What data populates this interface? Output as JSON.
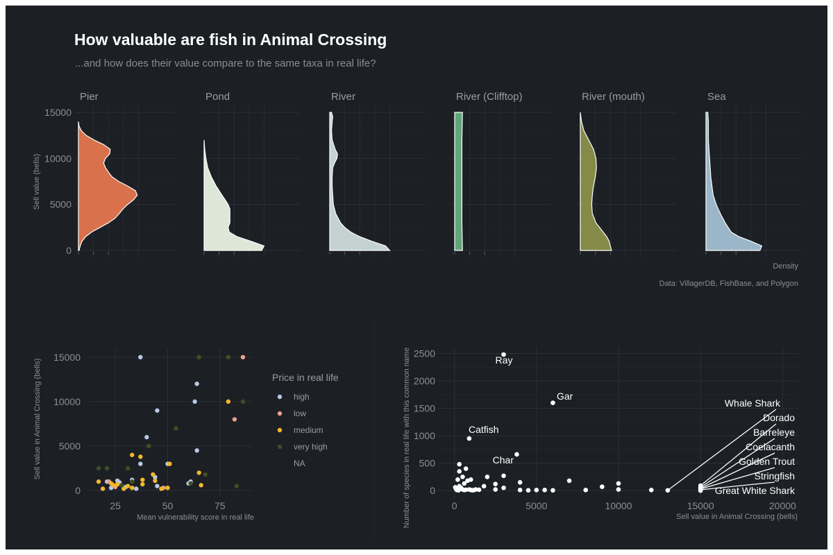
{
  "title": "How valuable are fish in Animal Crossing",
  "subtitle": "...and how does their value compare to the same taxa in real life?",
  "caption": "Data: VillagerDB, FishBase, and Polygon",
  "chart_data": [
    {
      "type": "area",
      "kind": "faceted density (horizontal)",
      "ylabel": "Sell value (bells)",
      "xlabel": "Density",
      "ylim": [
        0,
        15000
      ],
      "y_ticks": [
        0,
        5000,
        10000,
        15000
      ],
      "grid": true,
      "y_grid": "sell value in bells",
      "x_grid": "relative density, peak = 1",
      "facets": [
        {
          "name": "Pier",
          "color": "#d8714c",
          "density": [
            [
              0,
              0.01
            ],
            [
              500,
              0.03
            ],
            [
              1000,
              0.06
            ],
            [
              1500,
              0.12
            ],
            [
              2000,
              0.22
            ],
            [
              2500,
              0.36
            ],
            [
              3000,
              0.5
            ],
            [
              3500,
              0.61
            ],
            [
              4000,
              0.68
            ],
            [
              4500,
              0.74
            ],
            [
              5000,
              0.82
            ],
            [
              5500,
              0.92
            ],
            [
              6000,
              0.98
            ],
            [
              6500,
              0.95
            ],
            [
              7000,
              0.82
            ],
            [
              7500,
              0.67
            ],
            [
              8000,
              0.56
            ],
            [
              8500,
              0.5
            ],
            [
              9000,
              0.45
            ],
            [
              9500,
              0.42
            ],
            [
              10000,
              0.45
            ],
            [
              10500,
              0.52
            ],
            [
              11000,
              0.53
            ],
            [
              11500,
              0.42
            ],
            [
              12000,
              0.26
            ],
            [
              12500,
              0.13
            ],
            [
              13000,
              0.05
            ],
            [
              13500,
              0.01
            ],
            [
              14000,
              0.0
            ]
          ]
        },
        {
          "name": "Pond",
          "color": "#dce7d8",
          "density": [
            [
              0,
              0.96
            ],
            [
              500,
              1.0
            ],
            [
              1000,
              0.78
            ],
            [
              1500,
              0.55
            ],
            [
              2000,
              0.42
            ],
            [
              2500,
              0.4
            ],
            [
              3000,
              0.43
            ],
            [
              3500,
              0.43
            ],
            [
              4000,
              0.43
            ],
            [
              4500,
              0.43
            ],
            [
              5000,
              0.4
            ],
            [
              5500,
              0.35
            ],
            [
              6000,
              0.3
            ],
            [
              7000,
              0.2
            ],
            [
              8000,
              0.12
            ],
            [
              9000,
              0.06
            ],
            [
              10000,
              0.03
            ],
            [
              11000,
              0.01
            ],
            [
              12000,
              0.0
            ]
          ]
        },
        {
          "name": "River",
          "color": "#c5d2d2",
          "density": [
            [
              0,
              1.0
            ],
            [
              500,
              0.93
            ],
            [
              1000,
              0.7
            ],
            [
              1500,
              0.5
            ],
            [
              2000,
              0.35
            ],
            [
              2500,
              0.25
            ],
            [
              3000,
              0.18
            ],
            [
              4000,
              0.1
            ],
            [
              5000,
              0.06
            ],
            [
              6000,
              0.05
            ],
            [
              7000,
              0.04
            ],
            [
              8000,
              0.04
            ],
            [
              9000,
              0.05
            ],
            [
              9500,
              0.08
            ],
            [
              10000,
              0.12
            ],
            [
              10500,
              0.13
            ],
            [
              11000,
              0.09
            ],
            [
              12000,
              0.04
            ],
            [
              13000,
              0.03
            ],
            [
              14000,
              0.04
            ],
            [
              14500,
              0.05
            ],
            [
              15000,
              0.03
            ]
          ]
        },
        {
          "name": "River (Clifftop)",
          "color": "#5fa778",
          "density": [
            [
              0,
              0.13
            ],
            [
              3000,
              0.12
            ],
            [
              6000,
              0.12
            ],
            [
              9000,
              0.12
            ],
            [
              12000,
              0.12
            ],
            [
              15000,
              0.13
            ]
          ]
        },
        {
          "name": "River (mouth)",
          "color": "#858a48",
          "density": [
            [
              0,
              0.52
            ],
            [
              500,
              0.5
            ],
            [
              1000,
              0.48
            ],
            [
              1500,
              0.44
            ],
            [
              2000,
              0.38
            ],
            [
              2500,
              0.32
            ],
            [
              3000,
              0.26
            ],
            [
              4000,
              0.2
            ],
            [
              5000,
              0.19
            ],
            [
              6000,
              0.2
            ],
            [
              7000,
              0.22
            ],
            [
              8000,
              0.25
            ],
            [
              9000,
              0.27
            ],
            [
              10000,
              0.26
            ],
            [
              11000,
              0.22
            ],
            [
              12000,
              0.14
            ],
            [
              13000,
              0.06
            ],
            [
              14000,
              0.02
            ],
            [
              15000,
              0.0
            ]
          ]
        },
        {
          "name": "Sea",
          "color": "#9ab6c8",
          "density": [
            [
              0,
              0.9
            ],
            [
              500,
              0.93
            ],
            [
              1000,
              0.75
            ],
            [
              1500,
              0.55
            ],
            [
              2000,
              0.42
            ],
            [
              3000,
              0.32
            ],
            [
              4000,
              0.24
            ],
            [
              5000,
              0.17
            ],
            [
              6000,
              0.12
            ],
            [
              7000,
              0.1
            ],
            [
              8000,
              0.08
            ],
            [
              9000,
              0.07
            ],
            [
              10000,
              0.06
            ],
            [
              11000,
              0.05
            ],
            [
              12000,
              0.04
            ],
            [
              13000,
              0.04
            ],
            [
              14000,
              0.04
            ],
            [
              15000,
              0.03
            ]
          ]
        }
      ]
    },
    {
      "type": "scatter",
      "xlabel": "Mean vulnerability score in real life",
      "ylabel": "Sell value in Animal Crossing (bells)",
      "xlim": [
        12,
        90
      ],
      "ylim": [
        -700,
        16000
      ],
      "x_ticks": [
        25,
        50,
        75
      ],
      "y_ticks": [
        0,
        5000,
        10000,
        15000
      ],
      "grid": true,
      "legend_title": "Price in real life",
      "legend_position": "right",
      "series": [
        {
          "name": "high",
          "color": "#b8c8e6",
          "points": [
            [
              37,
              15000
            ],
            [
              64,
              12000
            ],
            [
              63,
              10000
            ],
            [
              45,
              9000
            ],
            [
              40,
              6000
            ],
            [
              64,
              4500
            ],
            [
              37,
              3000
            ],
            [
              50,
              3000
            ],
            [
              44,
              1500
            ],
            [
              61,
              1000
            ],
            [
              26,
              1100
            ],
            [
              33,
              1200
            ],
            [
              27,
              900
            ],
            [
              21,
              1000
            ],
            [
              45,
              500
            ],
            [
              30,
              400
            ],
            [
              23,
              300
            ],
            [
              35,
              200
            ],
            [
              60,
              800
            ]
          ]
        },
        {
          "name": "low",
          "color": "#e8a090",
          "points": [
            [
              86,
              15000
            ],
            [
              82,
              8000
            ],
            [
              22,
              1000
            ],
            [
              25,
              400
            ],
            [
              48,
              300
            ]
          ]
        },
        {
          "name": "medium",
          "color": "#f0b829",
          "points": [
            [
              79,
              10000
            ],
            [
              33,
              4000
            ],
            [
              37,
              3800
            ],
            [
              51,
              3000
            ],
            [
              43,
              1800
            ],
            [
              65,
              2000
            ],
            [
              38,
              1200
            ],
            [
              17,
              1000
            ],
            [
              23,
              800
            ],
            [
              26,
              700
            ],
            [
              31,
              500
            ],
            [
              19,
              200
            ],
            [
              38,
              700
            ],
            [
              29,
              200
            ],
            [
              50,
              300
            ],
            [
              66,
              600
            ],
            [
              47,
              200
            ],
            [
              33,
              300
            ],
            [
              44,
              1100
            ],
            [
              24,
              600
            ]
          ]
        },
        {
          "name": "very high",
          "color": "#3f4f23",
          "points": [
            [
              65,
              15000
            ],
            [
              79,
              15000
            ],
            [
              86,
              10000
            ],
            [
              54,
              7000
            ],
            [
              41,
              5000
            ],
            [
              17,
              2500
            ],
            [
              21,
              2500
            ],
            [
              31,
              2500
            ],
            [
              68,
              1800
            ],
            [
              61,
              800
            ],
            [
              83,
              500
            ],
            [
              33,
              1000
            ],
            [
              28,
              600
            ]
          ]
        },
        {
          "name": "NA",
          "color": "#1c1f24",
          "points": []
        }
      ]
    },
    {
      "type": "scatter",
      "xlabel": "Sell value in Animal Crossing (bells)",
      "ylabel": "Number of species in real life with this common name",
      "xlim": [
        -1000,
        21000
      ],
      "ylim": [
        -150,
        2620
      ],
      "x_ticks": [
        0,
        5000,
        10000,
        15000,
        20000
      ],
      "y_ticks": [
        0,
        500,
        1000,
        1500,
        2000,
        2500
      ],
      "grid": true,
      "points": [
        [
          3000,
          2480
        ],
        [
          6000,
          1600
        ],
        [
          900,
          950
        ],
        [
          3800,
          660
        ],
        [
          300,
          480
        ],
        [
          700,
          400
        ],
        [
          300,
          350
        ],
        [
          3000,
          270
        ],
        [
          500,
          250
        ],
        [
          2000,
          250
        ],
        [
          4000,
          150
        ],
        [
          7000,
          180
        ],
        [
          9000,
          70
        ],
        [
          10000,
          130
        ],
        [
          200,
          200
        ],
        [
          800,
          180
        ],
        [
          1000,
          200
        ],
        [
          2500,
          120
        ],
        [
          600,
          130
        ],
        [
          1800,
          80
        ],
        [
          300,
          80
        ],
        [
          400,
          50
        ],
        [
          100,
          30
        ],
        [
          200,
          20
        ],
        [
          500,
          20
        ],
        [
          600,
          10
        ],
        [
          700,
          15
        ],
        [
          900,
          20
        ],
        [
          1000,
          10
        ],
        [
          1100,
          5
        ],
        [
          1200,
          10
        ],
        [
          1500,
          15
        ],
        [
          1300,
          20
        ],
        [
          2500,
          20
        ],
        [
          3000,
          50
        ],
        [
          4000,
          10
        ],
        [
          4500,
          5
        ],
        [
          5000,
          10
        ],
        [
          5500,
          10
        ],
        [
          6000,
          5
        ],
        [
          8000,
          10
        ],
        [
          10000,
          20
        ],
        [
          12000,
          10
        ],
        [
          13000,
          5
        ],
        [
          15000,
          90
        ],
        [
          15000,
          60
        ],
        [
          15000,
          40
        ],
        [
          15000,
          30
        ],
        [
          15000,
          15
        ],
        [
          15000,
          5
        ],
        [
          15000,
          0
        ],
        [
          50,
          60
        ],
        [
          150,
          10
        ],
        [
          250,
          5
        ],
        [
          350,
          40
        ]
      ],
      "labels": [
        {
          "text": "Ray",
          "x": 3000,
          "y": 2480
        },
        {
          "text": "Gar",
          "x": 6000,
          "y": 1600
        },
        {
          "text": "Catfish",
          "x": 900,
          "y": 950
        },
        {
          "text": "Char",
          "x": 3800,
          "y": 660
        },
        {
          "text": "Whale Shark",
          "x": 13000,
          "y": 5
        },
        {
          "text": "Dorado",
          "x": 15000,
          "y": 90
        },
        {
          "text": "Barreleye",
          "x": 15000,
          "y": 60
        },
        {
          "text": "Coelacanth",
          "x": 15000,
          "y": 40
        },
        {
          "text": "Golden Trout",
          "x": 15000,
          "y": 30
        },
        {
          "text": "Stringfish",
          "x": 15000,
          "y": 15
        },
        {
          "text": "Great White Shark",
          "x": 15000,
          "y": 0
        }
      ]
    }
  ]
}
